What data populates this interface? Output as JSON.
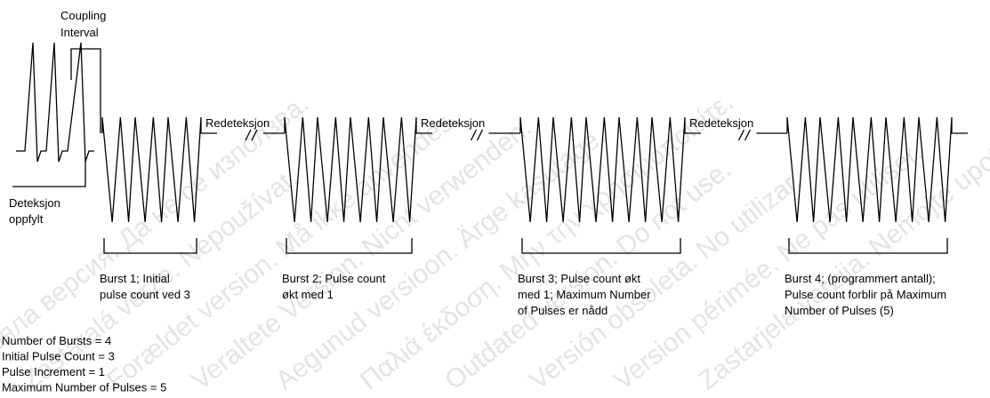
{
  "labels": {
    "coupling_interval": [
      "Coupling",
      "Interval"
    ],
    "detection": [
      "Deteksjon",
      "oppfylt"
    ],
    "redetection": [
      "Redeteksjon",
      "Redeteksjon",
      "Redeteksjon"
    ]
  },
  "bursts": [
    {
      "label": [
        "Burst 1; Initial",
        "pulse count ved 3"
      ]
    },
    {
      "label": [
        "Burst 2; Pulse count",
        "økt med 1"
      ]
    },
    {
      "label": [
        "Burst 3; Pulse count økt",
        "med 1; Maximum Number",
        "of Pulses er nådd"
      ]
    },
    {
      "label": [
        "Burst 4; (programmert antall);",
        "Pulse count forblir på Maximum",
        "Number of Pulses (5)"
      ]
    }
  ],
  "parameters": [
    "Number of Bursts = 4",
    "Initial Pulse Count = 3",
    "Pulse Increment = 1",
    "Maximum Number of Pulses = 5"
  ],
  "watermark": [
    "Остаряла версия. Да не се използва.",
    "Zastaralá verze. Nepoužívat.",
    "Forældet version. Må ikke anvendes.",
    "Veraltete Version. Nicht verwenden.",
    "Aegunud versioon. Ärge kasutage.",
    "Παλιά έκδοση. Μην την χρησιμοποιείτε.",
    "Outdated version. Do not use.",
    "Versión obsoleta. No utilizar.",
    "Version périmée. Ne pas utiliser.",
    "Zastarjela verzija. Nemojte upotrebljavati."
  ]
}
